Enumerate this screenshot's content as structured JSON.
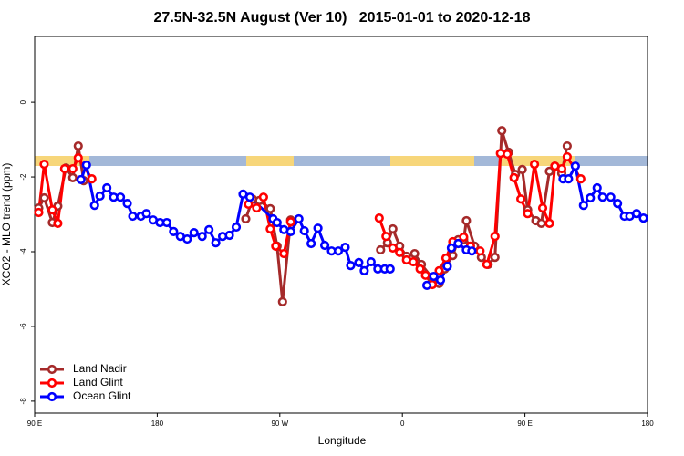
{
  "chart_data": {
    "type": "line",
    "title": "27.5N-32.5N August (Ver 10)   2015-01-01 to 2020-12-18",
    "x_label": "Longitude",
    "y_label": "XCO2 - MLO trend (ppm)",
    "xlim": [
      90,
      540
    ],
    "xticks": [
      {
        "value": 90,
        "label": "90 E"
      },
      {
        "value": 180,
        "label": "180"
      },
      {
        "value": 270,
        "label": "90 W"
      },
      {
        "value": 360,
        "label": "0"
      },
      {
        "value": 450,
        "label": "90 E"
      },
      {
        "value": 540,
        "label": "180"
      }
    ],
    "ylim": [
      -8.32,
      1.76
    ],
    "yticks": [
      0,
      -2,
      -4,
      -6,
      -8
    ],
    "legend": "bottomleft",
    "series": [
      {
        "name": "Land Nadir",
        "color": "#a52a2a",
        "x": [
          93,
          97,
          103,
          107,
          113,
          118,
          122,
          126,
          null,
          245,
          250,
          255,
          263,
          268,
          272,
          278,
          null,
          344,
          349,
          353,
          358,
          363,
          369,
          374,
          382,
          387,
          391,
          397,
          401,
          405,
          407,
          413,
          418,
          423,
          428,
          433,
          438,
          443,
          448,
          452,
          458,
          462,
          468,
          472,
          477,
          481
        ],
        "values": [
          -2.83,
          -2.56,
          -3.22,
          -2.78,
          -1.76,
          -2.02,
          -1.17,
          -2.1,
          null,
          -3.12,
          -2.59,
          -2.63,
          -2.85,
          -3.85,
          -5.34,
          -3.15,
          null,
          -3.95,
          -3.76,
          -3.39,
          -3.85,
          -4.12,
          -4.05,
          -4.34,
          -4.71,
          -4.85,
          -4.46,
          -4.1,
          -3.68,
          -3.68,
          -3.17,
          -3.85,
          -4.15,
          -4.34,
          -4.15,
          -0.76,
          -1.34,
          -1.93,
          -1.8,
          -2.88,
          -3.17,
          -3.24,
          -1.85,
          -1.71,
          -1.9,
          -1.17
        ]
      },
      {
        "name": "Land Glint",
        "color": "#ff0000",
        "x": [
          93,
          97,
          103,
          107,
          112,
          118,
          122,
          132,
          null,
          247,
          253,
          258,
          263,
          267,
          273,
          278,
          null,
          343,
          348,
          353,
          358,
          363,
          368,
          373,
          377,
          382,
          387,
          392,
          397,
          401,
          405,
          410,
          417,
          422,
          428,
          432,
          437,
          442,
          447,
          452,
          457,
          463,
          468,
          472,
          477,
          481,
          491
        ],
        "values": [
          -2.95,
          -1.66,
          -2.88,
          -3.24,
          -1.78,
          -1.78,
          -1.49,
          -2.05,
          null,
          -2.73,
          -2.83,
          -2.54,
          -3.39,
          -3.85,
          -4.05,
          -3.2,
          null,
          -3.1,
          -3.59,
          -3.9,
          -4.02,
          -4.22,
          -4.27,
          -4.46,
          -4.63,
          -4.88,
          -4.51,
          -4.17,
          -3.73,
          -3.78,
          -3.61,
          -3.85,
          -3.98,
          -4.34,
          -3.59,
          -1.37,
          -1.39,
          -2.02,
          -2.59,
          -2.98,
          -1.66,
          -2.83,
          -3.24,
          -1.71,
          -1.78,
          -1.46,
          -2.05
        ]
      },
      {
        "name": "Ocean Glint",
        "color": "#0000ff",
        "x": [
          124,
          128,
          134,
          138,
          143,
          148,
          153,
          158,
          162,
          168,
          172,
          177,
          182,
          187,
          192,
          197,
          202,
          207,
          213,
          218,
          223,
          228,
          233,
          238,
          243,
          248,
          265,
          268,
          273,
          278,
          284,
          288,
          293,
          298,
          303,
          308,
          313,
          318,
          322,
          328,
          332,
          337,
          342,
          347,
          351,
          null,
          378,
          383,
          388,
          393,
          396,
          401,
          407,
          411,
          null,
          478,
          482,
          487,
          493,
          498,
          503,
          507,
          513,
          518,
          523,
          527,
          532,
          537
        ],
        "values": [
          -2.07,
          -1.68,
          -2.76,
          -2.51,
          -2.29,
          -2.54,
          -2.54,
          -2.71,
          -3.05,
          -3.05,
          -2.98,
          -3.15,
          -3.22,
          -3.22,
          -3.46,
          -3.59,
          -3.66,
          -3.49,
          -3.59,
          -3.41,
          -3.76,
          -3.59,
          -3.56,
          -3.34,
          -2.46,
          -2.54,
          -3.12,
          -3.22,
          -3.41,
          -3.46,
          -3.12,
          -3.44,
          -3.78,
          -3.37,
          -3.83,
          -3.98,
          -3.98,
          -3.88,
          -4.37,
          -4.29,
          -4.51,
          -4.27,
          -4.46,
          -4.46,
          -4.46,
          null,
          -4.9,
          -4.66,
          -4.76,
          -4.39,
          -3.9,
          -3.78,
          -3.95,
          -3.98,
          null,
          -2.05,
          -2.05,
          -1.71,
          -2.76,
          -2.56,
          -2.29,
          -2.54,
          -2.54,
          -2.71,
          -3.05,
          -3.05,
          -2.98,
          -3.1
        ]
      }
    ]
  }
}
